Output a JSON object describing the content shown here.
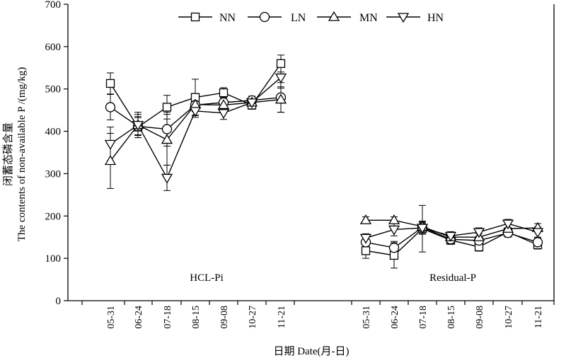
{
  "chart_data": {
    "type": "line",
    "ylabel_cn": "闭蓄态磷含量",
    "ylabel_en": "The contents of non-available P /(mg/kg)",
    "xlabel": "日期 Date(月-日)",
    "ylim": [
      0,
      700
    ],
    "yticks": [
      0,
      100,
      200,
      300,
      400,
      500,
      600,
      700
    ],
    "legend": {
      "placement": "top-center"
    },
    "series_meta": [
      {
        "name": "NN",
        "marker": "square"
      },
      {
        "name": "LN",
        "marker": "circle"
      },
      {
        "name": "MN",
        "marker": "triangle-up"
      },
      {
        "name": "HN",
        "marker": "triangle-down"
      }
    ],
    "groups": [
      {
        "label": "HCL-Pi",
        "categories": [
          "05-31",
          "06-24",
          "07-18",
          "08-15",
          "09-08",
          "10-27",
          "11-21"
        ],
        "series": [
          {
            "name": "NN",
            "values": [
              513,
              410,
              457,
              480,
              491,
              462,
              560
            ],
            "err": [
              25,
              25,
              28,
              43,
              12,
              10,
              20
            ]
          },
          {
            "name": "LN",
            "values": [
              457,
              412,
              405,
              462,
              468,
              473,
              480
            ],
            "err": [
              30,
              20,
              40,
              15,
              12,
              10,
              35
            ]
          },
          {
            "name": "MN",
            "values": [
              330,
              415,
              380,
              463,
              462,
              468,
              475
            ],
            "err": [
              65,
              25,
              60,
              25,
              10,
              10,
              30
            ]
          },
          {
            "name": "HN",
            "values": [
              370,
              415,
              290,
              448,
              443,
              468,
              527
            ],
            "err": [
              40,
              30,
              30,
              15,
              15,
              10,
              25
            ]
          }
        ]
      },
      {
        "label": "Residual-P",
        "categories": [
          "05-31",
          "06-24",
          "07-18",
          "08-15",
          "09-08",
          "10-27",
          "11-21"
        ],
        "series": [
          {
            "name": "NN",
            "values": [
              118,
              107,
              170,
              143,
              127,
              162,
              132
            ],
            "err": [
              18,
              30,
              55,
              10,
              10,
              10,
              10
            ]
          },
          {
            "name": "LN",
            "values": [
              138,
              125,
              173,
              145,
              142,
              160,
              138
            ],
            "err": [
              15,
              15,
              15,
              10,
              10,
              10,
              10
            ]
          },
          {
            "name": "MN",
            "values": [
              190,
              190,
              175,
              150,
              150,
              170,
              172
            ],
            "err": [
              8,
              8,
              10,
              8,
              8,
              10,
              10
            ]
          },
          {
            "name": "HN",
            "values": [
              148,
              168,
              172,
              153,
              162,
              182,
              162
            ],
            "err": [
              10,
              15,
              15,
              10,
              10,
              10,
              12
            ]
          }
        ]
      }
    ]
  }
}
